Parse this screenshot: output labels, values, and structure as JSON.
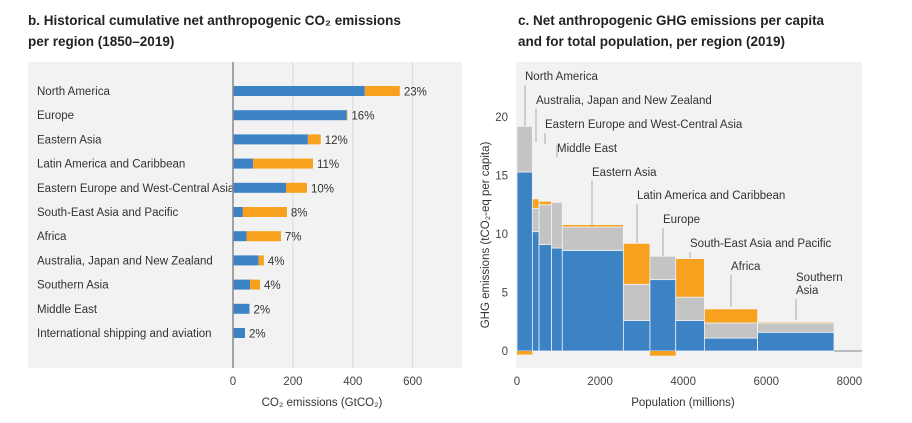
{
  "colors": {
    "blue": "#3b83c4",
    "orange": "#f7a11f",
    "grey": "#c4c4c4",
    "panel": "#f2f2f2"
  },
  "chart_data": [
    {
      "type": "bar",
      "orientation": "horizontal",
      "stacked": true,
      "title_line1": "b. Historical cumulative net anthropogenic CO₂ emissions",
      "title_line2": "per region (1850–2019)",
      "xlabel": "CO₂ emissions (GtCO₂)",
      "ylabel": "",
      "xlim": [
        0,
        760
      ],
      "xticks": [
        "0",
        "200",
        "400",
        "600"
      ],
      "grid": true,
      "categories": [
        "North America",
        "Europe",
        "Eastern Asia",
        "Latin America and Caribbean",
        "Eastern Europe and West-Central Asia",
        "South-East Asia and Pacific",
        "Africa",
        "Australia, Japan and New Zealand",
        "Southern Asia",
        "Middle East",
        "International shipping and aviation"
      ],
      "series": [
        {
          "color": "#3b83c4",
          "values": [
            440,
            380,
            250,
            67,
            177,
            33,
            45,
            85,
            57,
            55,
            40
          ]
        },
        {
          "color": "#f7a11f",
          "values": [
            117,
            2,
            43,
            200,
            70,
            147,
            115,
            18,
            33,
            0,
            0
          ]
        }
      ],
      "data_labels": [
        "23%",
        "16%",
        "12%",
        "11%",
        "10%",
        "8%",
        "7%",
        "4%",
        "4%",
        "2%",
        "2%"
      ]
    },
    {
      "type": "bar",
      "variant": "variable-width stacked",
      "title_line1": "c. Net anthropogenic GHG emissions per capita",
      "title_line2": "and for total population, per region (2019)",
      "xlabel": "Population (millions)",
      "ylabel": "GHG emissions (tCO₂-eq per capita)",
      "xlim": [
        0,
        8300
      ],
      "ylim": [
        -1.2,
        23.5
      ],
      "xticks": [
        "0",
        "2000",
        "4000",
        "6000",
        "8000"
      ],
      "yticks": [
        "0",
        "5",
        "10",
        "15",
        "20"
      ],
      "grid": false,
      "segment_colors": [
        "#3b83c4",
        "#c4c4c4",
        "#f7a11f"
      ],
      "regions": [
        {
          "name": "North America",
          "population": 370,
          "segments": [
            15.3,
            3.9,
            -0.3
          ]
        },
        {
          "name": "Australia, Japan and New Zealand",
          "population": 160,
          "segments": [
            10.2,
            2.0,
            0.8
          ]
        },
        {
          "name": "Eastern Europe and West-Central Asia",
          "population": 300,
          "segments": [
            9.1,
            3.4,
            0.3
          ]
        },
        {
          "name": "Middle East",
          "population": 260,
          "segments": [
            8.8,
            3.9,
            0
          ]
        },
        {
          "name": "Eastern Asia",
          "population": 1470,
          "segments": [
            8.6,
            2.0,
            0.2
          ]
        },
        {
          "name": "Latin America and Caribbean",
          "population": 640,
          "segments": [
            2.6,
            3.1,
            3.5
          ]
        },
        {
          "name": "Europe",
          "population": 620,
          "segments": [
            6.1,
            2.0,
            -0.4
          ]
        },
        {
          "name": "South-East Asia and Pacific",
          "population": 690,
          "segments": [
            2.6,
            2.0,
            3.3
          ]
        },
        {
          "name": "Africa",
          "population": 1280,
          "segments": [
            1.1,
            1.3,
            1.2
          ]
        },
        {
          "name": "Southern Asia",
          "name_lines": [
            "Southern",
            "Asia"
          ],
          "population": 1840,
          "segments": [
            1.6,
            0.8,
            0.1
          ]
        }
      ]
    }
  ]
}
